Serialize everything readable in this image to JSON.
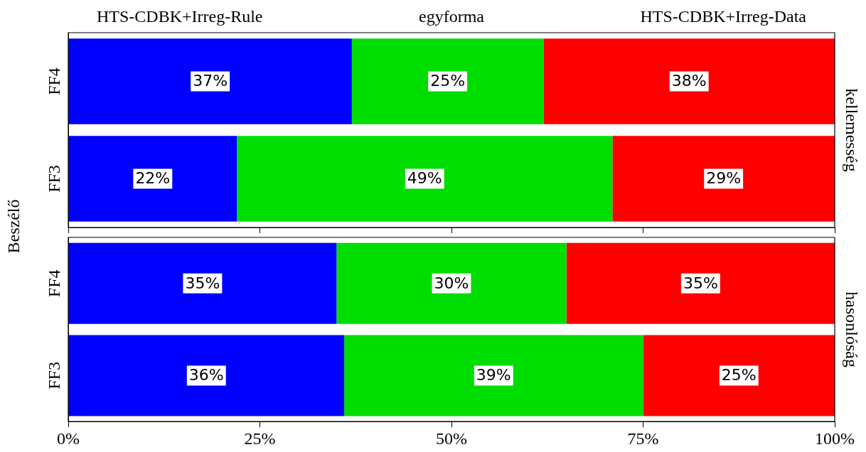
{
  "chart_data": [
    {
      "type": "bar",
      "orientation": "horizontal",
      "stacked": true,
      "ylabel": "Beszélő",
      "y2label": "kellemesség",
      "legend": "top",
      "tick_labels": "y",
      "grid": false,
      "categories": [
        "FF4",
        "FF3"
      ],
      "xlim": [
        0,
        100
      ],
      "xticks": [
        0,
        25,
        50,
        75,
        100
      ],
      "series": [
        {
          "name": "HTS-CDBK+Irreg-Rule",
          "color": "#0000ff",
          "values": [
            37,
            22
          ],
          "value_labels": [
            "37%",
            "22%"
          ]
        },
        {
          "name": "egyforma",
          "color": "#00dd00",
          "values": [
            25,
            49
          ],
          "value_labels": [
            "25%",
            "49%"
          ]
        },
        {
          "name": "HTS-CDBK+Irreg-Data",
          "color": "#ff0000",
          "values": [
            38,
            29
          ],
          "value_labels": [
            "38%",
            "29%"
          ]
        }
      ]
    },
    {
      "type": "bar",
      "orientation": "horizontal",
      "stacked": true,
      "y2label": "hasonlóság",
      "grid": false,
      "categories": [
        "FF4",
        "FF3"
      ],
      "xlim": [
        0,
        100
      ],
      "xticks": [
        {
          "value": 0,
          "label": "0%"
        },
        {
          "value": 25,
          "label": "25%"
        },
        {
          "value": 50,
          "label": "50%"
        },
        {
          "value": 75,
          "label": "75%"
        },
        {
          "value": 100,
          "label": "100%"
        }
      ],
      "series": [
        {
          "color": "#0000ff",
          "values": [
            35,
            36
          ],
          "value_labels": [
            "35%",
            "36%"
          ]
        },
        {
          "color": "#00dd00",
          "values": [
            30,
            39
          ],
          "value_labels": [
            "30%",
            "39%"
          ]
        },
        {
          "color": "#ff0000",
          "values": [
            35,
            25
          ],
          "value_labels": [
            "35%",
            "25%"
          ]
        }
      ]
    }
  ]
}
